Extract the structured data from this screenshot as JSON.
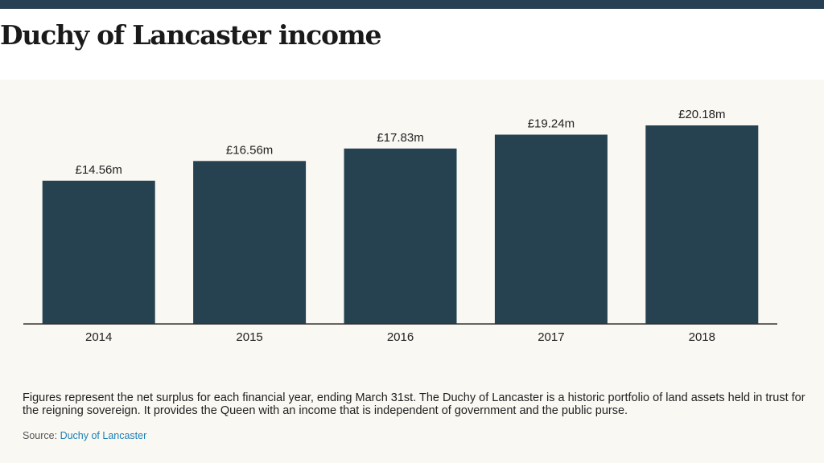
{
  "header": {
    "title": "Duchy of Lancaster income"
  },
  "chart_data": {
    "type": "bar",
    "title": "Duchy of Lancaster income",
    "xlabel": "",
    "ylabel": "",
    "categories": [
      "2014",
      "2015",
      "2016",
      "2017",
      "2018"
    ],
    "values": [
      14.56,
      16.56,
      17.83,
      19.24,
      20.18
    ],
    "value_labels": [
      "£14.56m",
      "£16.56m",
      "£17.83m",
      "£19.24m",
      "£20.18m"
    ],
    "ylim": [
      0,
      20.18
    ],
    "grid": false,
    "legend": "none",
    "bar_color": "#264251"
  },
  "footer": {
    "note": "Figures represent the net surplus for each financial year, ending March 31st. The Duchy of Lancaster is a historic portfolio of land assets held in trust for the reigning sovereign. It provides the Queen with an income that is independent of government and the public purse.",
    "source_prefix": "Source:",
    "source_link": "Duchy of Lancaster"
  },
  "colors": {
    "top_bar": "#263f52",
    "panel_background": "#faf8f3",
    "link": "#1d7fb5"
  }
}
